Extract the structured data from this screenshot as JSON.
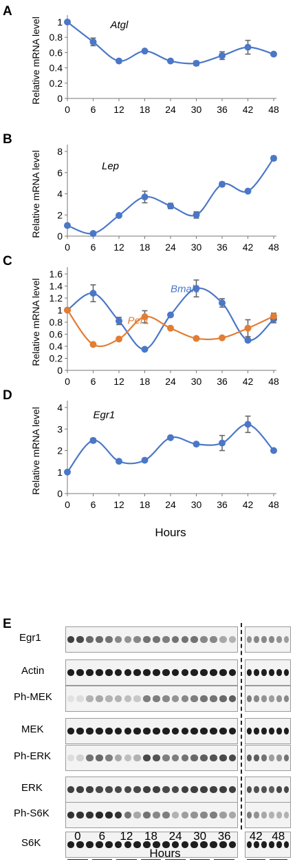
{
  "figure": {
    "panel_letters": [
      "A",
      "B",
      "C",
      "D",
      "E"
    ],
    "hours_label": "Hours",
    "blot": {
      "rows": [
        "Egr1",
        "Actin",
        "Ph-MEK",
        "MEK",
        "Ph-ERK",
        "ERK",
        "Ph-S6K",
        "S6K"
      ],
      "hour_groups": [
        "0",
        "6",
        "12",
        "18",
        "24",
        "30",
        "36",
        "42",
        "48"
      ],
      "xlabel": "Hours",
      "band_color": "#1e1e1e",
      "background_color": "#f3f3f3",
      "lanes_left": 18,
      "lanes_right": 6,
      "band_intensity": [
        [
          0.85,
          0.8,
          0.65,
          0.65,
          0.6,
          0.5,
          0.45,
          0.5,
          0.6,
          0.6,
          0.55,
          0.6,
          0.6,
          0.6,
          0.5,
          0.5,
          0.35,
          0.3,
          0.45,
          0.5,
          0.5,
          0.5,
          0.45,
          0.4
        ],
        [
          1,
          1,
          1,
          1,
          1,
          1,
          1,
          1,
          1,
          1,
          1,
          1,
          1,
          1,
          1,
          1,
          1,
          1,
          1,
          1,
          1,
          1,
          1,
          1
        ],
        [
          0.08,
          0.1,
          0.3,
          0.35,
          0.3,
          0.3,
          0.25,
          0.2,
          0.55,
          0.55,
          0.5,
          0.45,
          0.5,
          0.55,
          0.6,
          0.6,
          0.65,
          0.7,
          0.55,
          0.5,
          0.45,
          0.4,
          0.45,
          0.5
        ],
        [
          1,
          1,
          1,
          1,
          1,
          1,
          1,
          1,
          1,
          1,
          1,
          1,
          1,
          1,
          1,
          1,
          1,
          1,
          1,
          1,
          1,
          1,
          1,
          1
        ],
        [
          0.1,
          0.15,
          0.6,
          0.65,
          0.55,
          0.35,
          0.25,
          0.3,
          0.8,
          0.75,
          0.55,
          0.55,
          0.6,
          0.65,
          0.7,
          0.75,
          0.8,
          0.8,
          0.7,
          0.7,
          0.6,
          0.4,
          0.45,
          0.6
        ],
        [
          0.85,
          0.85,
          0.85,
          0.8,
          0.8,
          0.8,
          0.8,
          0.8,
          0.85,
          0.85,
          0.8,
          0.8,
          0.85,
          0.85,
          0.85,
          0.85,
          0.85,
          0.85,
          0.75,
          0.75,
          0.75,
          0.7,
          0.8,
          0.8
        ],
        [
          0.9,
          0.9,
          0.9,
          0.95,
          0.95,
          0.9,
          0.6,
          0.35,
          0.6,
          0.5,
          0.55,
          0.3,
          0.4,
          0.45,
          0.5,
          0.55,
          0.4,
          0.35,
          0.55,
          0.45,
          0.35,
          0.3,
          0.3,
          0.3
        ],
        [
          1,
          1,
          1,
          1,
          1,
          1,
          1,
          1,
          1,
          1,
          1,
          1,
          1,
          1,
          1,
          1,
          1,
          1,
          1,
          1,
          1,
          1,
          1,
          1
        ]
      ]
    }
  },
  "chart_data": [
    {
      "panel": "A",
      "type": "line",
      "ylabel": "Relative mRNA level",
      "xlabel": "",
      "x": [
        0,
        6,
        12,
        18,
        24,
        30,
        36,
        42,
        48
      ],
      "ylim": [
        0,
        1
      ],
      "yticks": [
        0,
        0.2,
        0.4,
        0.6,
        0.8,
        1
      ],
      "ytick_labels": [
        "0",
        "0.2",
        "0.4",
        "0.6",
        "0.8",
        "1"
      ],
      "grid": false,
      "series": [
        {
          "name": "Atgl",
          "color": "#4a77c7",
          "values": [
            1.0,
            0.74,
            0.49,
            0.62,
            0.49,
            0.46,
            0.56,
            0.67,
            0.58
          ],
          "errors": [
            0,
            0.05,
            0.02,
            0.01,
            0.02,
            0.03,
            0.05,
            0.09,
            0.02
          ]
        }
      ]
    },
    {
      "panel": "B",
      "type": "line",
      "ylabel": "Relative mRNA level",
      "xlabel": "",
      "x": [
        0,
        6,
        12,
        18,
        24,
        30,
        36,
        42,
        48
      ],
      "ylim": [
        0,
        8
      ],
      "yticks": [
        0,
        2,
        4,
        6,
        8
      ],
      "ytick_labels": [
        "0",
        "2",
        "4",
        "6",
        "8"
      ],
      "grid": false,
      "series": [
        {
          "name": "Lep",
          "color": "#4a77c7",
          "values": [
            1.0,
            0.25,
            1.95,
            3.7,
            2.85,
            2.0,
            4.9,
            4.25,
            7.35
          ],
          "errors": [
            0,
            0.05,
            0.1,
            0.55,
            0.25,
            0.3,
            0.2,
            0.1,
            0.2
          ]
        }
      ]
    },
    {
      "panel": "C",
      "type": "line",
      "ylabel": "Relative mRNA level",
      "xlabel": "",
      "x": [
        0,
        6,
        12,
        18,
        24,
        30,
        36,
        42,
        48
      ],
      "ylim": [
        0,
        1.6
      ],
      "yticks": [
        0,
        0.2,
        0.4,
        0.6,
        0.8,
        1,
        1.2,
        1.4,
        1.6
      ],
      "ytick_labels": [
        "0",
        "0.2",
        "0.4",
        "0.6",
        "0.8",
        "1",
        "1.2",
        "1.4",
        "1.6"
      ],
      "grid": false,
      "series": [
        {
          "name": "Bmal1",
          "color": "#4a77c7",
          "values": [
            1.0,
            1.28,
            0.82,
            0.35,
            0.92,
            1.36,
            1.12,
            0.5,
            0.85
          ],
          "errors": [
            0,
            0.14,
            0.06,
            0.02,
            0.02,
            0.14,
            0.07,
            0.03,
            0.06
          ]
        },
        {
          "name": "Per1",
          "color": "#e27d33",
          "values": [
            1.0,
            0.43,
            0.52,
            0.89,
            0.7,
            0.53,
            0.54,
            0.7,
            0.9
          ],
          "errors": [
            0,
            0.02,
            0.02,
            0.1,
            0.02,
            0.02,
            0.02,
            0.14,
            0.05
          ]
        }
      ]
    },
    {
      "panel": "D",
      "type": "line",
      "ylabel": "Relative mRNA level",
      "xlabel": "Hours",
      "x": [
        0,
        6,
        12,
        18,
        24,
        30,
        36,
        42,
        48
      ],
      "ylim": [
        0,
        4
      ],
      "yticks": [
        0,
        1,
        2,
        3,
        4
      ],
      "ytick_labels": [
        "0",
        "1",
        "2",
        "3",
        "4"
      ],
      "grid": false,
      "series": [
        {
          "name": "Egr1",
          "color": "#4a77c7",
          "values": [
            1.0,
            2.47,
            1.5,
            1.55,
            2.6,
            2.3,
            2.35,
            3.22,
            2.0
          ],
          "errors": [
            0,
            0.1,
            0.05,
            0.05,
            0.08,
            0.06,
            0.35,
            0.38,
            0.05
          ]
        }
      ]
    }
  ]
}
